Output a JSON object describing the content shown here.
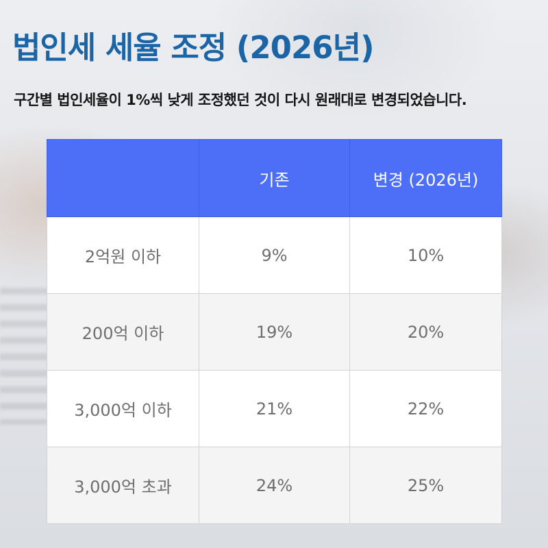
{
  "headline": "법인세 세율 조정 (2026년)",
  "subtitle": "구간별 법인세율이 1%씩 낮게 조정했던 것이 다시 원래대로 변경되었습니다.",
  "table": {
    "columns": [
      "",
      "기존",
      "변경 (2026년)"
    ],
    "rows": [
      {
        "bracket": "2억원 이하",
        "before": "9%",
        "after": "10%"
      },
      {
        "bracket": "200억 이하",
        "before": "19%",
        "after": "20%"
      },
      {
        "bracket": "3,000억 이하",
        "before": "21%",
        "after": "22%"
      },
      {
        "bracket": "3,000억 초과",
        "before": "24%",
        "after": "25%"
      }
    ]
  },
  "colors": {
    "headline": "#1b65a6",
    "header_bg": "#4d6ff7",
    "header_text": "#ffffff",
    "cell_text": "#6e6e6e"
  }
}
